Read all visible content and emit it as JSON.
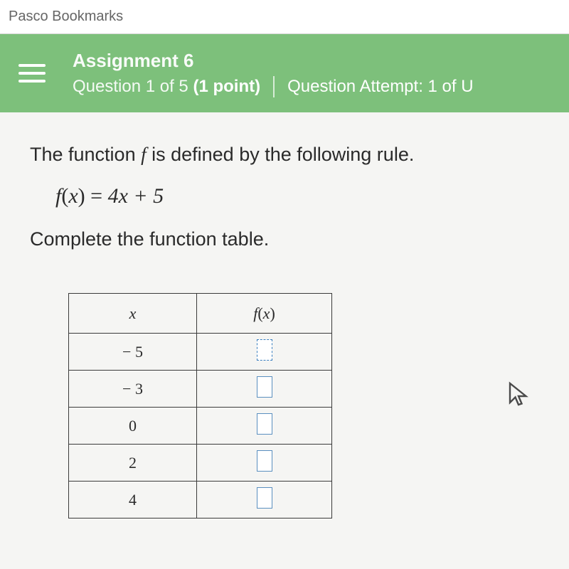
{
  "bookmarks": {
    "label": "Pasco Bookmarks"
  },
  "header": {
    "assignment_title": "Assignment 6",
    "question_label_prefix": "Question 1 of 5 ",
    "question_points": "(1 point)",
    "attempt_label": "Question Attempt: 1 of U"
  },
  "prompt": {
    "line1_pre": "The function ",
    "line1_f": "f",
    "line1_post": " is defined by the following rule.",
    "line2": "Complete the function table."
  },
  "formula": {
    "lhs_fn": "f",
    "lhs_open": "(",
    "lhs_var": "x",
    "lhs_close": ")",
    "eq": " = ",
    "rhs": "4x + 5"
  },
  "table": {
    "col_x": "x",
    "col_fx_fn": "f",
    "col_fx_open": "(",
    "col_fx_var": "x",
    "col_fx_close": ")",
    "rows": [
      {
        "x": "− 5",
        "active": true
      },
      {
        "x": "− 3",
        "active": false
      },
      {
        "x": "0",
        "active": false
      },
      {
        "x": "2",
        "active": false
      },
      {
        "x": "4",
        "active": false
      }
    ]
  },
  "colors": {
    "header_bg": "#7dc07b",
    "page_bg": "#f5f5f3",
    "border": "#3a3a3a",
    "input_border": "#5a8fbf"
  }
}
